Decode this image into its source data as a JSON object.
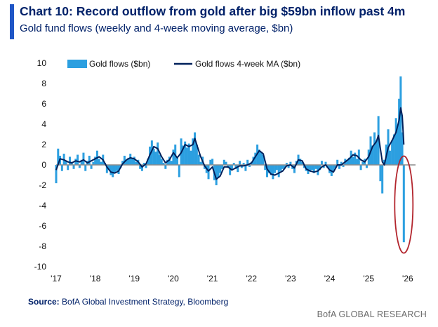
{
  "title": "Chart 10: Record outflow from gold after big $59bn inflow past 4m",
  "subtitle": "Gold fund flows (weekly and 4-week moving average, $bn)",
  "source_label": "Source:",
  "source_text": " BofA Global Investment Strategy, Bloomberg",
  "brand": "BofA GLOBAL RESEARCH",
  "colors": {
    "bars": "#2c9fe0",
    "ma_line": "#00205b",
    "zero_line": "#8c8c8c",
    "highlight": "#b3262e",
    "text": "#012169"
  },
  "chart_data": {
    "type": "bar",
    "title": "Gold fund flows (weekly and 4-week moving average, $bn)",
    "ylim": [
      -10,
      10
    ],
    "yticks": [
      10,
      8,
      6,
      4,
      2,
      0,
      -2,
      -4,
      -6,
      -8,
      -10
    ],
    "x_tick_labels": [
      "'17",
      "'18",
      "'19",
      "'20",
      "'21",
      "'22",
      "'23",
      "'24",
      "'25",
      "'26"
    ],
    "x_range_years": [
      2017,
      2026.2
    ],
    "legend": {
      "placement": "top-left"
    },
    "annotation": {
      "shape": "ellipse",
      "color": "#b3262e",
      "around": "latest weekly outflow"
    },
    "series": [
      {
        "name": "Gold flows ($bn)",
        "kind": "bar",
        "points": [
          [
            2017.0,
            -1.8
          ],
          [
            2017.05,
            1.6
          ],
          [
            2017.1,
            0.9
          ],
          [
            2017.15,
            -0.6
          ],
          [
            2017.2,
            1.1
          ],
          [
            2017.25,
            0.4
          ],
          [
            2017.3,
            -0.5
          ],
          [
            2017.35,
            0.8
          ],
          [
            2017.4,
            0.3
          ],
          [
            2017.45,
            -0.4
          ],
          [
            2017.5,
            0.6
          ],
          [
            2017.55,
            1.0
          ],
          [
            2017.6,
            -0.3
          ],
          [
            2017.65,
            0.5
          ],
          [
            2017.7,
            1.2
          ],
          [
            2017.75,
            -0.6
          ],
          [
            2017.8,
            0.4
          ],
          [
            2017.85,
            0.9
          ],
          [
            2017.9,
            -0.4
          ],
          [
            2017.95,
            0.3
          ],
          [
            2018.0,
            0.8
          ],
          [
            2018.05,
            1.4
          ],
          [
            2018.1,
            0.6
          ],
          [
            2018.15,
            0.3
          ],
          [
            2018.2,
            1.0
          ],
          [
            2018.25,
            0.2
          ],
          [
            2018.3,
            -0.8
          ],
          [
            2018.35,
            -0.5
          ],
          [
            2018.4,
            -1.0
          ],
          [
            2018.45,
            -1.2
          ],
          [
            2018.5,
            -0.8
          ],
          [
            2018.55,
            -0.6
          ],
          [
            2018.6,
            -0.9
          ],
          [
            2018.65,
            -0.3
          ],
          [
            2018.7,
            0.4
          ],
          [
            2018.75,
            0.9
          ],
          [
            2018.8,
            0.5
          ],
          [
            2018.85,
            0.7
          ],
          [
            2018.9,
            1.1
          ],
          [
            2018.95,
            0.6
          ],
          [
            2019.0,
            0.8
          ],
          [
            2019.05,
            0.3
          ],
          [
            2019.1,
            0.5
          ],
          [
            2019.15,
            -0.4
          ],
          [
            2019.2,
            -0.6
          ],
          [
            2019.25,
            0.2
          ],
          [
            2019.3,
            -0.3
          ],
          [
            2019.35,
            0.6
          ],
          [
            2019.4,
            1.8
          ],
          [
            2019.45,
            2.4
          ],
          [
            2019.5,
            1.6
          ],
          [
            2019.55,
            1.3
          ],
          [
            2019.6,
            2.2
          ],
          [
            2019.65,
            1.0
          ],
          [
            2019.7,
            0.6
          ],
          [
            2019.75,
            0.2
          ],
          [
            2019.8,
            -0.4
          ],
          [
            2019.85,
            0.5
          ],
          [
            2019.9,
            0.8
          ],
          [
            2019.95,
            0.4
          ],
          [
            2020.0,
            1.5
          ],
          [
            2020.05,
            2.0
          ],
          [
            2020.1,
            0.7
          ],
          [
            2020.15,
            -1.2
          ],
          [
            2020.2,
            2.6
          ],
          [
            2020.25,
            1.9
          ],
          [
            2020.3,
            2.3
          ],
          [
            2020.35,
            1.7
          ],
          [
            2020.4,
            2.1
          ],
          [
            2020.45,
            1.4
          ],
          [
            2020.5,
            2.6
          ],
          [
            2020.55,
            3.2
          ],
          [
            2020.6,
            2.0
          ],
          [
            2020.65,
            1.0
          ],
          [
            2020.7,
            0.3
          ],
          [
            2020.75,
            0.8
          ],
          [
            2020.8,
            -0.4
          ],
          [
            2020.85,
            -0.8
          ],
          [
            2020.9,
            -1.4
          ],
          [
            2020.95,
            0.5
          ],
          [
            2021.0,
            0.6
          ],
          [
            2021.05,
            -1.5
          ],
          [
            2021.1,
            -2.0
          ],
          [
            2021.15,
            -1.3
          ],
          [
            2021.2,
            -0.8
          ],
          [
            2021.25,
            -0.4
          ],
          [
            2021.3,
            0.5
          ],
          [
            2021.35,
            0.3
          ],
          [
            2021.4,
            -0.3
          ],
          [
            2021.45,
            -1.0
          ],
          [
            2021.5,
            -0.5
          ],
          [
            2021.55,
            0.2
          ],
          [
            2021.6,
            -0.4
          ],
          [
            2021.65,
            -0.7
          ],
          [
            2021.7,
            0.4
          ],
          [
            2021.75,
            -0.3
          ],
          [
            2021.8,
            0.2
          ],
          [
            2021.85,
            -0.6
          ],
          [
            2021.9,
            0.5
          ],
          [
            2021.95,
            -0.2
          ],
          [
            2022.0,
            0.3
          ],
          [
            2022.05,
            0.8
          ],
          [
            2022.1,
            1.2
          ],
          [
            2022.15,
            2.0
          ],
          [
            2022.2,
            1.5
          ],
          [
            2022.25,
            1.3
          ],
          [
            2022.3,
            1.0
          ],
          [
            2022.35,
            -0.5
          ],
          [
            2022.4,
            -1.2
          ],
          [
            2022.45,
            -0.8
          ],
          [
            2022.5,
            -1.0
          ],
          [
            2022.55,
            -1.4
          ],
          [
            2022.6,
            -0.8
          ],
          [
            2022.65,
            -0.5
          ],
          [
            2022.7,
            -1.2
          ],
          [
            2022.75,
            -0.6
          ],
          [
            2022.8,
            -0.4
          ],
          [
            2022.85,
            -0.3
          ],
          [
            2022.9,
            0.2
          ],
          [
            2022.95,
            -0.3
          ],
          [
            2023.0,
            0.3
          ],
          [
            2023.05,
            -0.4
          ],
          [
            2023.1,
            -0.8
          ],
          [
            2023.15,
            0.4
          ],
          [
            2023.2,
            1.0
          ],
          [
            2023.25,
            0.6
          ],
          [
            2023.3,
            0.3
          ],
          [
            2023.35,
            -0.3
          ],
          [
            2023.4,
            -0.6
          ],
          [
            2023.45,
            -0.9
          ],
          [
            2023.5,
            -0.6
          ],
          [
            2023.55,
            -0.5
          ],
          [
            2023.6,
            -0.8
          ],
          [
            2023.65,
            -0.4
          ],
          [
            2023.7,
            -1.0
          ],
          [
            2023.75,
            -0.5
          ],
          [
            2023.8,
            0.4
          ],
          [
            2023.85,
            -0.3
          ],
          [
            2023.9,
            0.3
          ],
          [
            2023.95,
            -0.3
          ],
          [
            2024.0,
            -0.8
          ],
          [
            2024.05,
            -1.1
          ],
          [
            2024.1,
            -0.6
          ],
          [
            2024.15,
            -0.3
          ],
          [
            2024.2,
            0.5
          ],
          [
            2024.25,
            -0.4
          ],
          [
            2024.3,
            0.3
          ],
          [
            2024.35,
            -0.2
          ],
          [
            2024.4,
            0.6
          ],
          [
            2024.45,
            0.4
          ],
          [
            2024.5,
            0.7
          ],
          [
            2024.55,
            1.4
          ],
          [
            2024.6,
            0.8
          ],
          [
            2024.65,
            1.2
          ],
          [
            2024.7,
            0.6
          ],
          [
            2024.75,
            1.5
          ],
          [
            2024.8,
            -0.5
          ],
          [
            2024.85,
            0.3
          ],
          [
            2024.9,
            0.6
          ],
          [
            2024.95,
            -0.3
          ],
          [
            2025.0,
            1.5
          ],
          [
            2025.05,
            2.8
          ],
          [
            2025.1,
            1.9
          ],
          [
            2025.15,
            3.2
          ],
          [
            2025.2,
            2.4
          ],
          [
            2025.25,
            4.8
          ],
          [
            2025.3,
            -1.6
          ],
          [
            2025.35,
            -2.8
          ],
          [
            2025.4,
            0.5
          ],
          [
            2025.45,
            2.0
          ],
          [
            2025.5,
            3.5
          ],
          [
            2025.55,
            1.4
          ],
          [
            2025.6,
            2.4
          ],
          [
            2025.65,
            3.0
          ],
          [
            2025.7,
            4.6
          ],
          [
            2025.75,
            3.8
          ],
          [
            2025.78,
            6.5
          ],
          [
            2025.82,
            8.7
          ],
          [
            2025.86,
            3.2
          ],
          [
            2025.9,
            -7.6
          ]
        ]
      },
      {
        "name": "Gold flows 4-week MA ($bn)",
        "kind": "line",
        "points": [
          [
            2017.0,
            -0.5
          ],
          [
            2017.1,
            0.6
          ],
          [
            2017.2,
            0.5
          ],
          [
            2017.3,
            0.3
          ],
          [
            2017.4,
            0.2
          ],
          [
            2017.5,
            0.4
          ],
          [
            2017.6,
            0.3
          ],
          [
            2017.7,
            0.5
          ],
          [
            2017.8,
            0.2
          ],
          [
            2017.9,
            0.4
          ],
          [
            2018.0,
            0.6
          ],
          [
            2018.1,
            0.8
          ],
          [
            2018.2,
            0.5
          ],
          [
            2018.3,
            -0.2
          ],
          [
            2018.4,
            -0.7
          ],
          [
            2018.5,
            -0.8
          ],
          [
            2018.6,
            -0.6
          ],
          [
            2018.7,
            0.1
          ],
          [
            2018.8,
            0.5
          ],
          [
            2018.9,
            0.7
          ],
          [
            2019.0,
            0.6
          ],
          [
            2019.1,
            0.3
          ],
          [
            2019.2,
            -0.2
          ],
          [
            2019.3,
            0.1
          ],
          [
            2019.4,
            1.0
          ],
          [
            2019.5,
            1.8
          ],
          [
            2019.6,
            1.6
          ],
          [
            2019.7,
            0.8
          ],
          [
            2019.8,
            0.2
          ],
          [
            2019.9,
            0.5
          ],
          [
            2020.0,
            1.2
          ],
          [
            2020.1,
            0.7
          ],
          [
            2020.2,
            1.2
          ],
          [
            2020.3,
            2.0
          ],
          [
            2020.4,
            1.8
          ],
          [
            2020.5,
            2.0
          ],
          [
            2020.55,
            2.6
          ],
          [
            2020.6,
            2.0
          ],
          [
            2020.7,
            0.8
          ],
          [
            2020.8,
            -0.1
          ],
          [
            2020.9,
            -0.6
          ],
          [
            2021.0,
            -0.2
          ],
          [
            2021.1,
            -1.4
          ],
          [
            2021.2,
            -1.1
          ],
          [
            2021.3,
            -0.2
          ],
          [
            2021.4,
            -0.2
          ],
          [
            2021.5,
            -0.5
          ],
          [
            2021.6,
            -0.3
          ],
          [
            2021.7,
            -0.1
          ],
          [
            2021.8,
            -0.1
          ],
          [
            2021.9,
            0.0
          ],
          [
            2022.0,
            0.2
          ],
          [
            2022.1,
            0.8
          ],
          [
            2022.2,
            1.4
          ],
          [
            2022.3,
            1.1
          ],
          [
            2022.4,
            -0.4
          ],
          [
            2022.5,
            -0.9
          ],
          [
            2022.6,
            -1.0
          ],
          [
            2022.7,
            -0.8
          ],
          [
            2022.8,
            -0.6
          ],
          [
            2022.9,
            -0.1
          ],
          [
            2023.0,
            0.0
          ],
          [
            2023.1,
            -0.3
          ],
          [
            2023.2,
            0.5
          ],
          [
            2023.3,
            0.4
          ],
          [
            2023.4,
            -0.4
          ],
          [
            2023.5,
            -0.6
          ],
          [
            2023.6,
            -0.7
          ],
          [
            2023.7,
            -0.6
          ],
          [
            2023.8,
            -0.2
          ],
          [
            2023.9,
            0.0
          ],
          [
            2024.0,
            -0.5
          ],
          [
            2024.1,
            -0.7
          ],
          [
            2024.2,
            0.0
          ],
          [
            2024.3,
            0.0
          ],
          [
            2024.4,
            0.3
          ],
          [
            2024.5,
            0.6
          ],
          [
            2024.6,
            1.0
          ],
          [
            2024.7,
            0.9
          ],
          [
            2024.8,
            0.5
          ],
          [
            2024.9,
            0.3
          ],
          [
            2025.0,
            0.8
          ],
          [
            2025.1,
            1.8
          ],
          [
            2025.2,
            2.3
          ],
          [
            2025.25,
            2.9
          ],
          [
            2025.3,
            1.6
          ],
          [
            2025.35,
            0.3
          ],
          [
            2025.4,
            0.0
          ],
          [
            2025.5,
            1.7
          ],
          [
            2025.6,
            2.4
          ],
          [
            2025.7,
            3.2
          ],
          [
            2025.78,
            4.4
          ],
          [
            2025.82,
            5.6
          ],
          [
            2025.86,
            4.8
          ],
          [
            2025.9,
            2.0
          ]
        ]
      }
    ]
  }
}
